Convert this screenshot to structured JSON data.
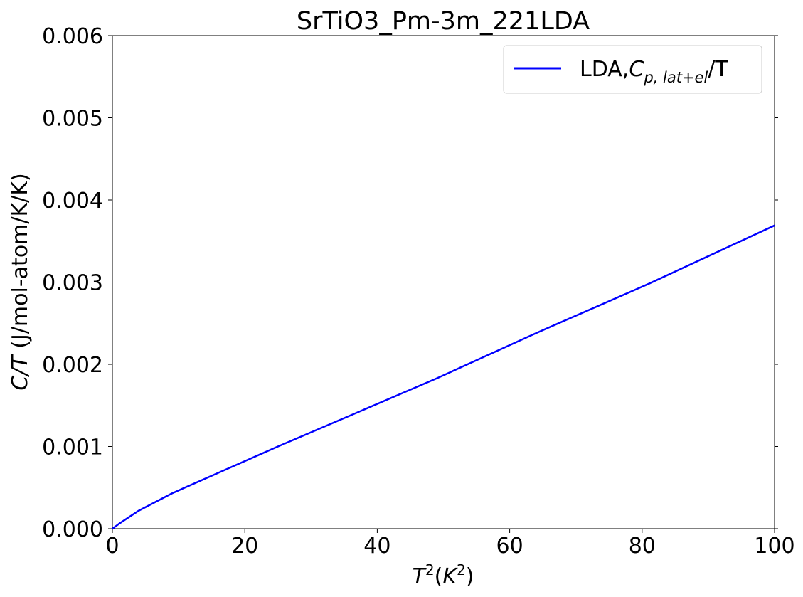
{
  "chart_data": {
    "type": "line",
    "title": "SrTiO3_Pm-3m_221LDA",
    "xlabel": {
      "base": "T",
      "sup": "2",
      "mid": "(K",
      "sup2": "2",
      "end": ")"
    },
    "ylabel": {
      "italic": "C/T",
      "rest": " (J/mol-atom/K/K)"
    },
    "xlim": [
      0,
      100
    ],
    "ylim": [
      0,
      0.006
    ],
    "xticks": [
      0,
      20,
      40,
      60,
      80,
      100
    ],
    "xtick_labels": [
      "0",
      "20",
      "40",
      "60",
      "80",
      "100"
    ],
    "yticks": [
      0,
      0.001,
      0.002,
      0.003,
      0.004,
      0.005,
      0.006
    ],
    "ytick_labels": [
      "0.000",
      "0.001",
      "0.002",
      "0.003",
      "0.004",
      "0.005",
      "0.006"
    ],
    "grid": false,
    "legend_position": "top-right",
    "legend": {
      "prefix": "LDA,",
      "sym": "C",
      "sub": "p, lat+el",
      "suffix": "/T"
    },
    "series": [
      {
        "name": "LDA,Cp,lat+el/T",
        "color": "#0000ff",
        "x": [
          0,
          1,
          4,
          9,
          16,
          25,
          36,
          49,
          64,
          81,
          100
        ],
        "y": [
          0,
          6e-05,
          0.00022,
          0.00043,
          0.00068,
          0.001,
          0.00138,
          0.00183,
          0.00238,
          0.00298,
          0.00369
        ]
      }
    ]
  }
}
